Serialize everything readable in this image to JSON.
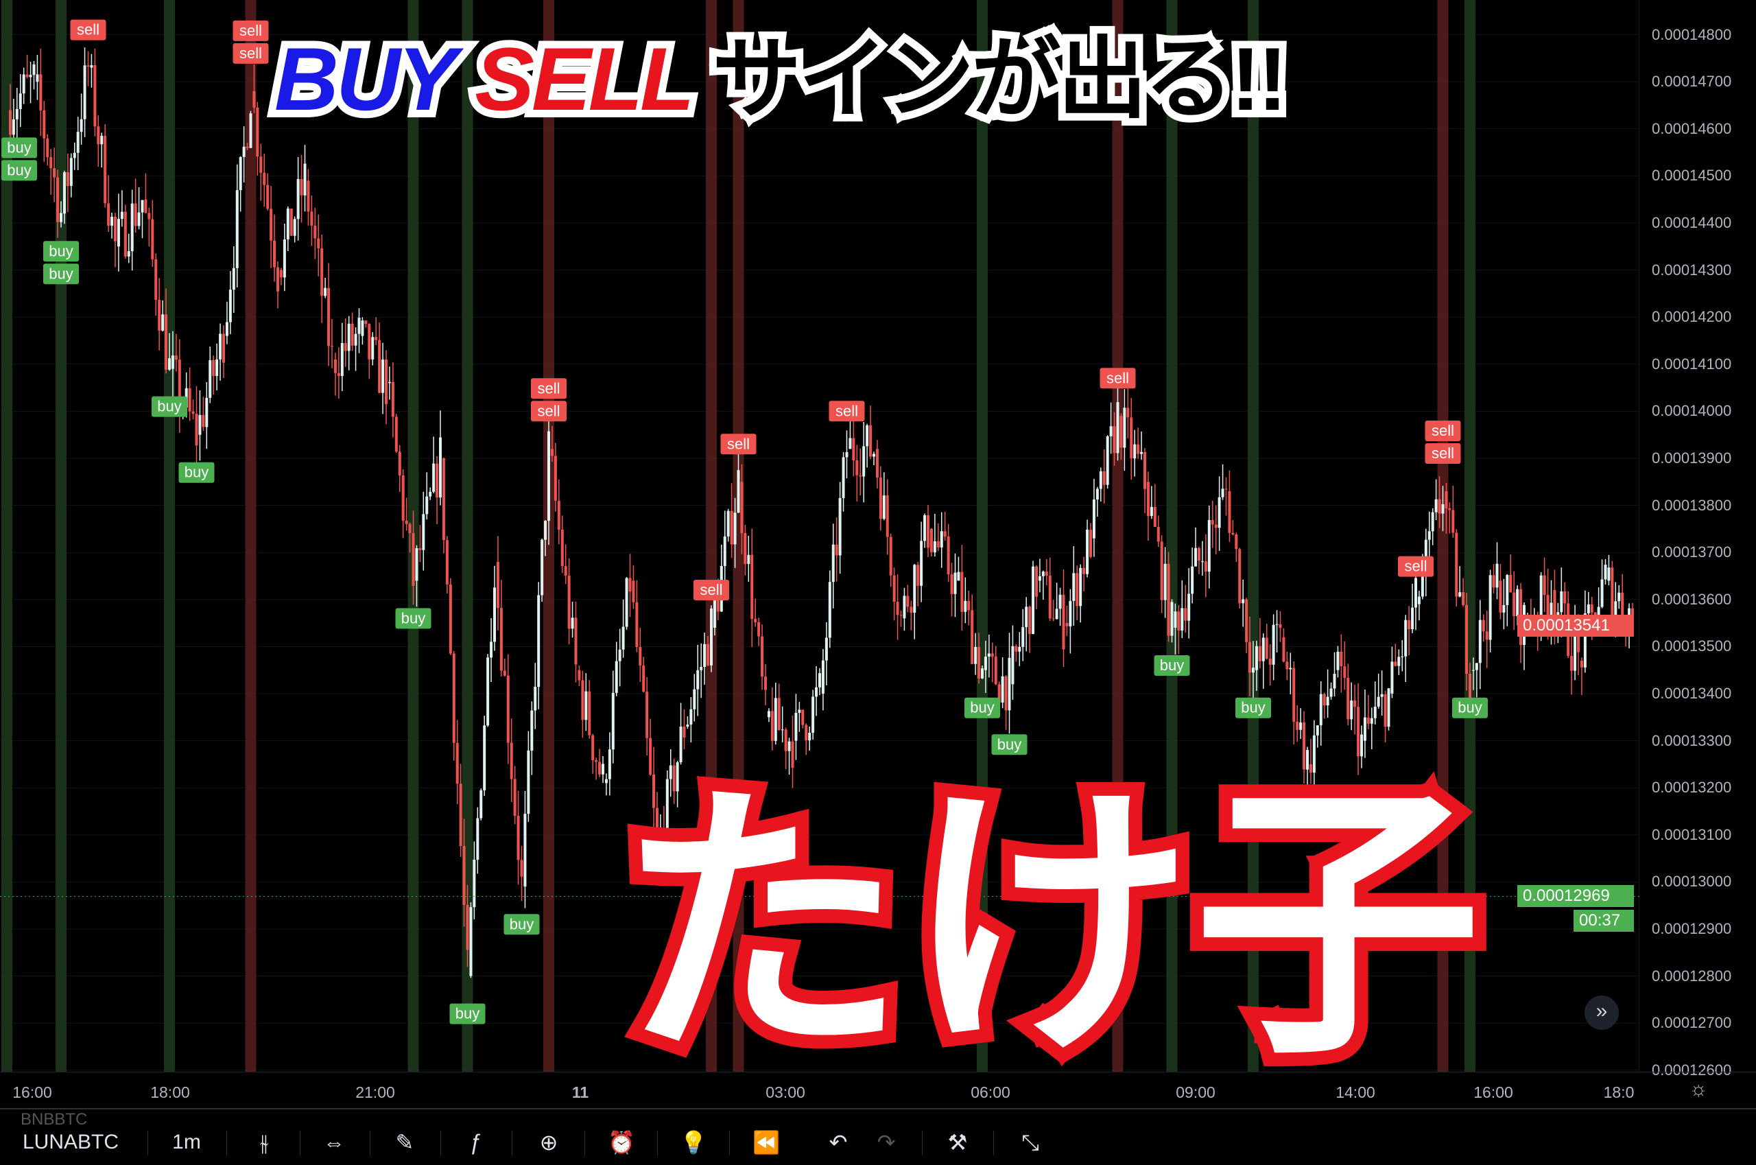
{
  "chart_data": {
    "type": "candlestick",
    "symbol": "LUNABTC",
    "interval": "1m",
    "price_ticks": [
      "0.00014800",
      "0.00014700",
      "0.00014600",
      "0.00014500",
      "0.00014400",
      "0.00014300",
      "0.00014200",
      "0.00014100",
      "0.00014000",
      "0.00013900",
      "0.00013800",
      "0.00013700",
      "0.00013600",
      "0.00013500",
      "0.00013400",
      "0.00013300",
      "0.00013200",
      "0.00013100",
      "0.00013000",
      "0.00012900",
      "0.00012800",
      "0.00012700",
      "0.00012600"
    ],
    "ylim": [
      0.000126,
      0.0001484
    ],
    "time_ticks": [
      "16:00",
      "18:00",
      "21:00",
      "11",
      "03:00",
      "06:00",
      "09:00",
      "14:00",
      "16:00",
      "18:0"
    ],
    "prices": [
      0.0001464,
      0.000147,
      0.0001442,
      0.0001473,
      0.0001435,
      0.0001445,
      0.0001409,
      0.0001395,
      0.0001416,
      0.0001468,
      0.000143,
      0.0001449,
      0.0001411,
      0.0001416,
      0.0001406,
      0.0001364,
      0.000139,
      0.000128,
      0.0001368,
      0.0001299,
      0.0001392,
      0.0001345,
      0.0001321,
      0.0001364,
      0.0001306,
      0.0001333,
      0.0001354,
      0.0001385,
      0.0001335,
      0.000133,
      0.000134,
      0.0001392,
      0.0001392,
      0.0001356,
      0.0001375,
      0.0001364,
      0.0001345,
      0.0001342,
      0.0001364,
      0.0001355,
      0.0001373,
      0.0001399,
      0.0001385,
      0.0001354,
      0.0001368,
      0.0001383,
      0.0001345,
      0.0001352,
      0.0001325,
      0.0001345,
      0.000133,
      0.000134,
      0.0001359,
      0.0001383,
      0.0001345,
      0.0001364,
      0.0001355,
      0.0001362,
      0.0001347,
      0.0001364,
      0.0001356
    ],
    "signals": [
      {
        "i": 0,
        "label": "buy"
      },
      {
        "i": 0,
        "label": "buy"
      },
      {
        "i": 2,
        "label": "buy"
      },
      {
        "i": 2,
        "label": "buy"
      },
      {
        "i": 3,
        "label": "sell"
      },
      {
        "i": 6,
        "label": "buy"
      },
      {
        "i": 7,
        "label": "buy"
      },
      {
        "i": 9,
        "label": "sell"
      },
      {
        "i": 9,
        "label": "sell"
      },
      {
        "i": 15,
        "label": "buy"
      },
      {
        "i": 17,
        "label": "buy"
      },
      {
        "i": 19,
        "label": "buy"
      },
      {
        "i": 20,
        "label": "sell"
      },
      {
        "i": 20,
        "label": "sell"
      },
      {
        "i": 26,
        "label": "sell"
      },
      {
        "i": 27,
        "label": "sell"
      },
      {
        "i": 31,
        "label": "sell"
      },
      {
        "i": 36,
        "label": "buy"
      },
      {
        "i": 37,
        "label": "buy"
      },
      {
        "i": 41,
        "label": "sell"
      },
      {
        "i": 43,
        "label": "buy"
      },
      {
        "i": 46,
        "label": "buy"
      },
      {
        "i": 48,
        "label": "buy"
      },
      {
        "i": 52,
        "label": "sell"
      },
      {
        "i": 53,
        "label": "sell"
      },
      {
        "i": 53,
        "label": "sell"
      },
      {
        "i": 54,
        "label": "buy"
      }
    ],
    "bands": [
      {
        "i": 0,
        "signal": "buy"
      },
      {
        "i": 2,
        "signal": "buy"
      },
      {
        "i": 6,
        "signal": "buy"
      },
      {
        "i": 9,
        "signal": "sell"
      },
      {
        "i": 15,
        "signal": "buy"
      },
      {
        "i": 17,
        "signal": "buy"
      },
      {
        "i": 20,
        "signal": "sell"
      },
      {
        "i": 26,
        "signal": "sell"
      },
      {
        "i": 27,
        "signal": "sell"
      },
      {
        "i": 36,
        "signal": "buy"
      },
      {
        "i": 41,
        "signal": "sell"
      },
      {
        "i": 43,
        "signal": "buy"
      },
      {
        "i": 46,
        "signal": "buy"
      },
      {
        "i": 53,
        "signal": "sell"
      },
      {
        "i": 54,
        "signal": "buy"
      }
    ],
    "last_price": "0.00013541",
    "bid_price": "0.00012969",
    "bid_price_value": 0.00012969,
    "countdown": "00:37"
  },
  "colors": {
    "buy": "#4caf50",
    "sell": "#ef5350",
    "up": "#e0f2f1",
    "down": "#ef5350"
  },
  "overlay": {
    "buy": "BUY",
    "sell": "SELL",
    "rest": "サインが出る!!",
    "name": "たけ子"
  },
  "toolbar": {
    "prev_symbol": "BNBBTC",
    "symbol": "LUNABTC",
    "interval": "1m"
  },
  "icons": [
    "candles-icon",
    "date-range-icon",
    "draw-icon",
    "indicator-fx-icon",
    "add-icon",
    "alert-clock-icon",
    "idea-bulb-icon",
    "replay-icon",
    "undo-icon",
    "redo-icon",
    "tools-icon",
    "fullscreen-icon"
  ],
  "scroll_icon": "»"
}
